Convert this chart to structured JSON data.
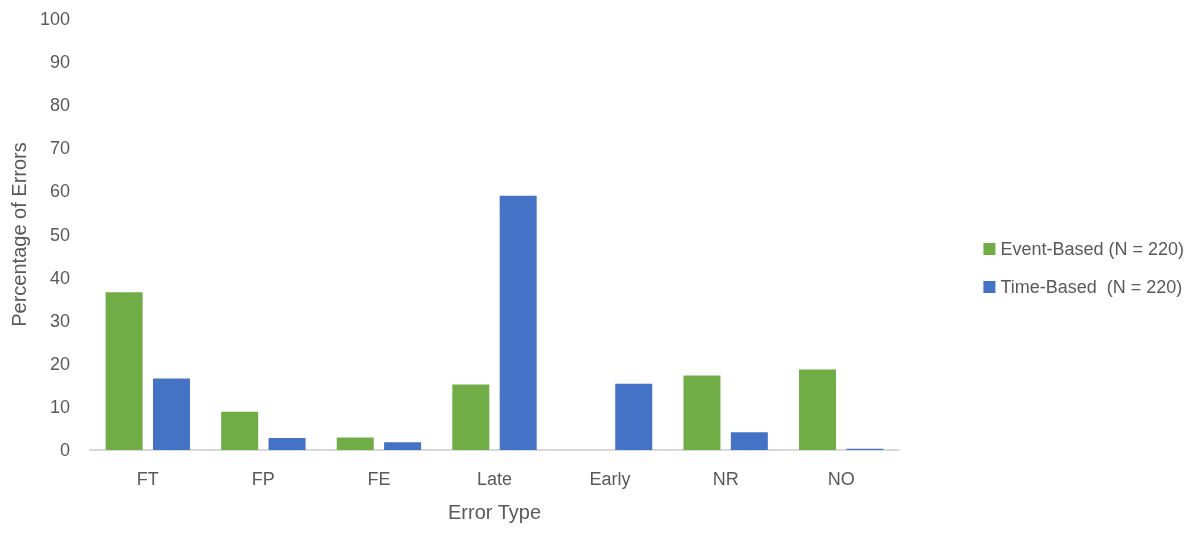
{
  "chart_data": {
    "type": "bar",
    "xlabel": "Error Type",
    "ylabel": "Percentage of Errors",
    "categories": [
      "FT",
      "FP",
      "FE",
      "Late",
      "Early",
      "NR",
      "NO"
    ],
    "series": [
      {
        "name": "Event-Based (N = 220)",
        "color": "#70ad47",
        "values": [
          36.6,
          8.9,
          2.9,
          15.2,
          0,
          17.3,
          18.7
        ]
      },
      {
        "name": "Time-Based  (N = 220)",
        "color": "#4472c4",
        "values": [
          16.6,
          2.8,
          1.8,
          59.0,
          15.4,
          4.1,
          0.3
        ]
      }
    ],
    "ylim": [
      0,
      100
    ],
    "yticks": [
      0,
      10,
      20,
      30,
      40,
      50,
      60,
      70,
      80,
      90,
      100
    ],
    "grid": false,
    "legend": "right"
  }
}
